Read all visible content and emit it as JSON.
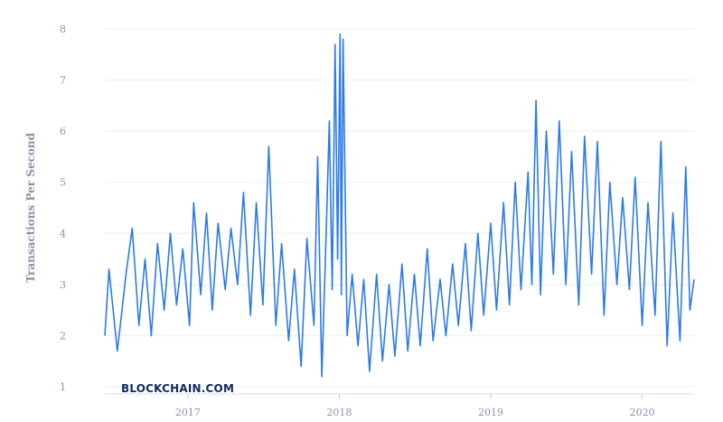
{
  "chart_data": {
    "type": "line",
    "title": "",
    "ylabel": "Transactions Per Second",
    "xlabel": "",
    "ylim": [
      1,
      8
    ],
    "y_ticks": [
      "1",
      "2",
      "3",
      "4",
      "5",
      "6",
      "7",
      "8"
    ],
    "x_ticks": [
      {
        "label": "2017",
        "date": "2017-01-01"
      },
      {
        "label": "2018",
        "date": "2018-01-01"
      },
      {
        "label": "2019",
        "date": "2019-01-01"
      },
      {
        "label": "2020",
        "date": "2020-01-01"
      }
    ],
    "x_range": [
      "2016-06-15",
      "2020-05-05"
    ],
    "grid": true,
    "line_color": "#2b7bea",
    "series": [
      {
        "points": [
          [
            "2016-06-15",
            2.0
          ],
          [
            "2016-06-25",
            3.3
          ],
          [
            "2016-07-05",
            2.5
          ],
          [
            "2016-07-15",
            1.7
          ],
          [
            "2016-07-25",
            2.4
          ],
          [
            "2016-08-05",
            3.2
          ],
          [
            "2016-08-20",
            4.1
          ],
          [
            "2016-09-05",
            2.2
          ],
          [
            "2016-09-20",
            3.5
          ],
          [
            "2016-10-05",
            2.0
          ],
          [
            "2016-10-20",
            3.8
          ],
          [
            "2016-11-05",
            2.5
          ],
          [
            "2016-11-20",
            4.0
          ],
          [
            "2016-12-05",
            2.6
          ],
          [
            "2016-12-20",
            3.7
          ],
          [
            "2017-01-05",
            2.2
          ],
          [
            "2017-01-15",
            4.6
          ],
          [
            "2017-02-01",
            2.8
          ],
          [
            "2017-02-15",
            4.4
          ],
          [
            "2017-03-01",
            2.5
          ],
          [
            "2017-03-15",
            4.2
          ],
          [
            "2017-04-01",
            2.9
          ],
          [
            "2017-04-15",
            4.1
          ],
          [
            "2017-05-01",
            3.0
          ],
          [
            "2017-05-15",
            4.8
          ],
          [
            "2017-06-01",
            2.4
          ],
          [
            "2017-06-15",
            4.6
          ],
          [
            "2017-07-01",
            2.6
          ],
          [
            "2017-07-15",
            5.7
          ],
          [
            "2017-08-01",
            2.2
          ],
          [
            "2017-08-15",
            3.8
          ],
          [
            "2017-09-01",
            1.9
          ],
          [
            "2017-09-15",
            3.3
          ],
          [
            "2017-10-01",
            1.4
          ],
          [
            "2017-10-15",
            3.9
          ],
          [
            "2017-11-01",
            2.2
          ],
          [
            "2017-11-10",
            5.5
          ],
          [
            "2017-11-20",
            1.2
          ],
          [
            "2017-12-01",
            4.2
          ],
          [
            "2017-12-08",
            6.2
          ],
          [
            "2017-12-15",
            2.9
          ],
          [
            "2017-12-22",
            7.7
          ],
          [
            "2017-12-28",
            3.5
          ],
          [
            "2018-01-03",
            7.9
          ],
          [
            "2018-01-06",
            2.8
          ],
          [
            "2018-01-10",
            7.8
          ],
          [
            "2018-01-20",
            2.0
          ],
          [
            "2018-02-01",
            3.2
          ],
          [
            "2018-02-15",
            1.8
          ],
          [
            "2018-03-01",
            3.1
          ],
          [
            "2018-03-15",
            1.3
          ],
          [
            "2018-04-01",
            3.2
          ],
          [
            "2018-04-15",
            1.5
          ],
          [
            "2018-05-01",
            3.0
          ],
          [
            "2018-05-15",
            1.6
          ],
          [
            "2018-06-01",
            3.4
          ],
          [
            "2018-06-15",
            1.7
          ],
          [
            "2018-07-01",
            3.2
          ],
          [
            "2018-07-15",
            1.8
          ],
          [
            "2018-08-01",
            3.7
          ],
          [
            "2018-08-15",
            1.9
          ],
          [
            "2018-09-01",
            3.1
          ],
          [
            "2018-09-15",
            2.0
          ],
          [
            "2018-10-01",
            3.4
          ],
          [
            "2018-10-15",
            2.2
          ],
          [
            "2018-11-01",
            3.8
          ],
          [
            "2018-11-15",
            2.1
          ],
          [
            "2018-12-01",
            4.0
          ],
          [
            "2018-12-15",
            2.4
          ],
          [
            "2019-01-01",
            4.2
          ],
          [
            "2019-01-15",
            2.5
          ],
          [
            "2019-02-01",
            4.6
          ],
          [
            "2019-02-15",
            2.6
          ],
          [
            "2019-03-01",
            5.0
          ],
          [
            "2019-03-15",
            2.9
          ],
          [
            "2019-04-01",
            5.2
          ],
          [
            "2019-04-10",
            3.0
          ],
          [
            "2019-04-20",
            6.6
          ],
          [
            "2019-05-01",
            2.8
          ],
          [
            "2019-05-15",
            6.0
          ],
          [
            "2019-06-01",
            3.2
          ],
          [
            "2019-06-15",
            6.2
          ],
          [
            "2019-07-01",
            3.0
          ],
          [
            "2019-07-15",
            5.6
          ],
          [
            "2019-08-01",
            2.6
          ],
          [
            "2019-08-15",
            5.9
          ],
          [
            "2019-09-01",
            3.2
          ],
          [
            "2019-09-15",
            5.8
          ],
          [
            "2019-10-01",
            2.4
          ],
          [
            "2019-10-15",
            5.0
          ],
          [
            "2019-11-01",
            3.0
          ],
          [
            "2019-11-15",
            4.7
          ],
          [
            "2019-12-01",
            2.9
          ],
          [
            "2019-12-15",
            5.1
          ],
          [
            "2020-01-01",
            2.2
          ],
          [
            "2020-01-15",
            4.6
          ],
          [
            "2020-02-01",
            2.4
          ],
          [
            "2020-02-15",
            5.8
          ],
          [
            "2020-03-01",
            1.8
          ],
          [
            "2020-03-15",
            4.4
          ],
          [
            "2020-04-01",
            1.9
          ],
          [
            "2020-04-15",
            5.3
          ],
          [
            "2020-04-25",
            2.5
          ],
          [
            "2020-05-05",
            3.1
          ]
        ]
      }
    ]
  },
  "watermark": "BLOCKCHAIN.COM"
}
